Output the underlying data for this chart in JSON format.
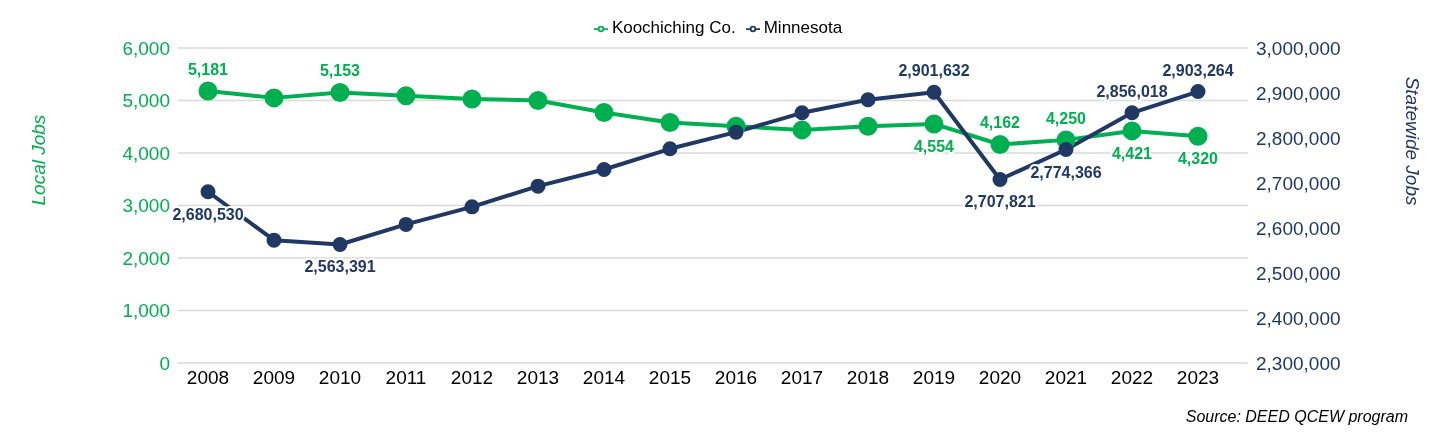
{
  "chart_data": {
    "type": "line",
    "categories": [
      "2008",
      "2009",
      "2010",
      "2011",
      "2012",
      "2013",
      "2014",
      "2015",
      "2016",
      "2017",
      "2018",
      "2019",
      "2020",
      "2021",
      "2022",
      "2023"
    ],
    "series": [
      {
        "name": "Koochiching Co.",
        "color": "#00b050",
        "values": [
          5181,
          5050,
          5153,
          5090,
          5030,
          5000,
          4770,
          4580,
          4510,
          4440,
          4510,
          4554,
          4162,
          4250,
          4421,
          4320
        ],
        "value_labels": [
          "5,181",
          null,
          "5,153",
          null,
          null,
          null,
          null,
          null,
          null,
          null,
          null,
          "4,554",
          "4,162",
          "4,250",
          "4,421",
          "4,320"
        ]
      },
      {
        "name": "Minnesota",
        "color": "#203864",
        "axis": "y2",
        "values": [
          2680530,
          2573000,
          2563391,
          2608000,
          2647000,
          2693000,
          2730000,
          2776000,
          2813000,
          2856000,
          2885000,
          2901632,
          2707821,
          2774366,
          2856018,
          2903264
        ],
        "value_labels": [
          "2,680,530",
          null,
          "2,563,391",
          null,
          null,
          null,
          null,
          null,
          null,
          null,
          null,
          "2,901,632",
          "2,707,821",
          "2,774,366",
          "2,856,018",
          "2,903,264"
        ]
      }
    ],
    "ylabel": "Local Jobs",
    "y2label": "Statewide Jobs",
    "ylim": [
      0,
      6000
    ],
    "yticks": [
      0,
      {
        "value": 1000,
        "label": "1,000"
      },
      {
        "value": 2000,
        "label": "2,000"
      },
      {
        "value": 3000,
        "label": "3,000"
      },
      {
        "value": 4000,
        "label": "4,000"
      },
      {
        "value": 5000,
        "label": "5,000"
      },
      {
        "value": 6000,
        "label": "6,000"
      }
    ],
    "y2lim": [
      2300000,
      3000000
    ],
    "y2ticks": [
      {
        "value": 2300000,
        "label": "2,300,000"
      },
      {
        "value": 2400000,
        "label": "2,400,000"
      },
      {
        "value": 2500000,
        "label": "2,500,000"
      },
      {
        "value": 2600000,
        "label": "2,600,000"
      },
      {
        "value": 2700000,
        "label": "2,700,000"
      },
      {
        "value": 2800000,
        "label": "2,800,000"
      },
      {
        "value": 2900000,
        "label": "2,900,000"
      },
      {
        "value": 3000000,
        "label": "3,000,000"
      }
    ],
    "grid": "y",
    "legend": "top",
    "marker": "circle",
    "line_style": "solid",
    "annotations": [
      "Source: DEED QCEW program"
    ]
  }
}
